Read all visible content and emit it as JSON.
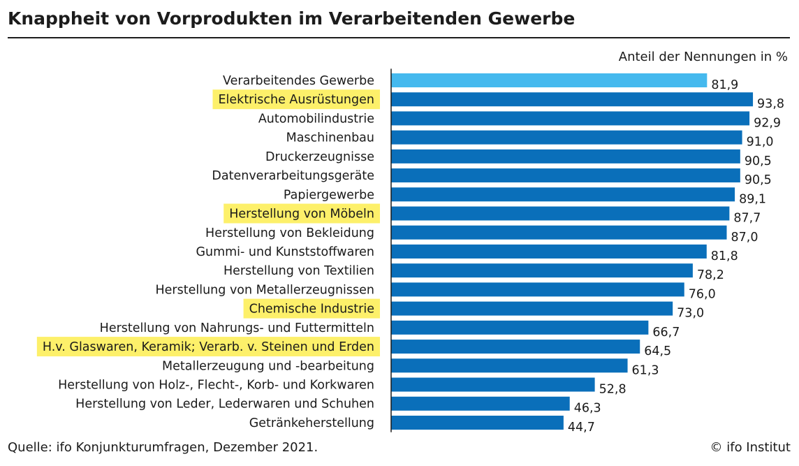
{
  "title": "Knappheit von Vorprodukten im Verarbeitenden Gewerbe",
  "unit_label": "Anteil der Nennungen in %",
  "source": "Quelle: ifo Konjunkturumfragen, Dezember 2021.",
  "copyright": "© ifo Institut",
  "colors": {
    "bar_default": "#0a6fba",
    "bar_total": "#45b9ee",
    "highlight": "#fdf06a",
    "axis": "#1a1a1a"
  },
  "chart_data": {
    "type": "bar",
    "orientation": "horizontal",
    "title": "Knappheit von Vorprodukten im Verarbeitenden Gewerbe",
    "xlabel": "Anteil der Nennungen in %",
    "ylabel": "",
    "xlim": [
      0,
      100
    ],
    "grid": false,
    "legend": "none",
    "categories": [
      "Verarbeitendes Gewerbe",
      "Elektrische Ausrüstungen",
      "Automobilindustrie",
      "Maschinenbau",
      "Druckerzeugnisse",
      "Datenverarbeitungsgeräte",
      "Papiergewerbe",
      "Herstellung von Möbeln",
      "Herstellung von Bekleidung",
      "Gummi- und Kunststoffwaren",
      "Herstellung von Textilien",
      "Herstellung von Metallerzeugnissen",
      "Chemische Industrie",
      "Herstellung von Nahrungs- und Futtermitteln",
      "H.v. Glaswaren, Keramik; Verarb. v. Steinen und Erden",
      "Metallerzeugung und -bearbeitung",
      "Herstellung von Holz-, Flecht-, Korb- und Korkwaren",
      "Herstellung von Leder, Lederwaren und Schuhen",
      "Getränkeherstellung"
    ],
    "values": [
      81.9,
      93.8,
      92.9,
      91.0,
      90.5,
      90.5,
      89.1,
      87.7,
      87.0,
      81.8,
      78.2,
      76.0,
      73.0,
      66.7,
      64.5,
      61.3,
      52.8,
      46.3,
      44.7
    ],
    "value_labels": [
      "81,9",
      "93,8",
      "92,9",
      "91,0",
      "90,5",
      "90,5",
      "89,1",
      "87,7",
      "87,0",
      "81,8",
      "78,2",
      "76,0",
      "73,0",
      "66,7",
      "64,5",
      "61,3",
      "52,8",
      "46,3",
      "44,7"
    ],
    "highlighted": [
      false,
      true,
      false,
      false,
      false,
      false,
      false,
      true,
      false,
      false,
      false,
      false,
      true,
      false,
      true,
      false,
      false,
      false,
      false
    ],
    "total_category": "Verarbeitendes Gewerbe"
  }
}
